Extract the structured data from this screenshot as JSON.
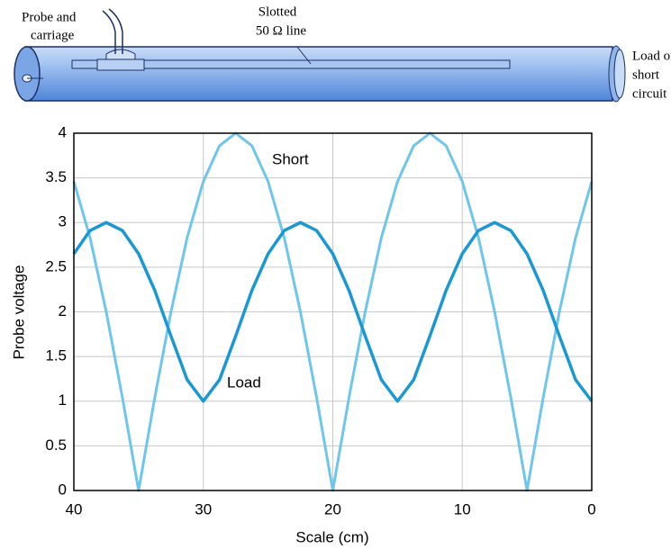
{
  "diagram": {
    "labels": [
      [
        "Probe and",
        "carriage"
      ],
      [
        "Slotted",
        "50 Ω line"
      ],
      [
        "Load or",
        "short",
        "circuit"
      ]
    ]
  },
  "chart_data": {
    "type": "line",
    "xlabel": "Scale (cm)",
    "ylabel": "Probe voltage",
    "x": [
      0,
      1.25,
      2.5,
      3.75,
      5,
      6.25,
      7.5,
      8.75,
      10,
      11.25,
      12.5,
      13.75,
      15,
      16.25,
      17.5,
      18.75,
      20,
      21.25,
      22.5,
      23.75,
      25,
      26.25,
      27.5,
      28.75,
      30,
      31.25,
      32.5,
      33.75,
      35,
      36.25,
      37.5,
      38.75,
      40
    ],
    "series": [
      {
        "name": "Short",
        "color": "#6ec6ea",
        "values": [
          3.46,
          2.83,
          2,
          1.04,
          0,
          1.04,
          2,
          2.83,
          3.46,
          3.86,
          4,
          3.86,
          3.46,
          2.83,
          2,
          1.04,
          0,
          1.04,
          2,
          2.83,
          3.46,
          3.86,
          4,
          3.86,
          3.46,
          2.83,
          2,
          1.04,
          0,
          1.04,
          2,
          2.83,
          3.46
        ]
      },
      {
        "name": "Load",
        "color": "#1b98d3",
        "values": [
          1,
          1.24,
          1.73,
          2.24,
          2.65,
          2.91,
          3,
          2.91,
          2.65,
          2.24,
          1.73,
          1.24,
          1,
          1.24,
          1.73,
          2.24,
          2.65,
          2.91,
          3,
          2.91,
          2.65,
          2.24,
          1.73,
          1.24,
          1,
          1.24,
          1.73,
          2.24,
          2.65,
          2.91,
          3,
          2.91,
          2.65
        ]
      }
    ],
    "xlim": [
      40,
      0
    ],
    "xticks": [
      40,
      30,
      20,
      10,
      0
    ],
    "ylim": [
      0,
      4
    ],
    "yticks": [
      0,
      0.5,
      1,
      1.5,
      2,
      2.5,
      3,
      3.5,
      4
    ],
    "grid": true
  }
}
